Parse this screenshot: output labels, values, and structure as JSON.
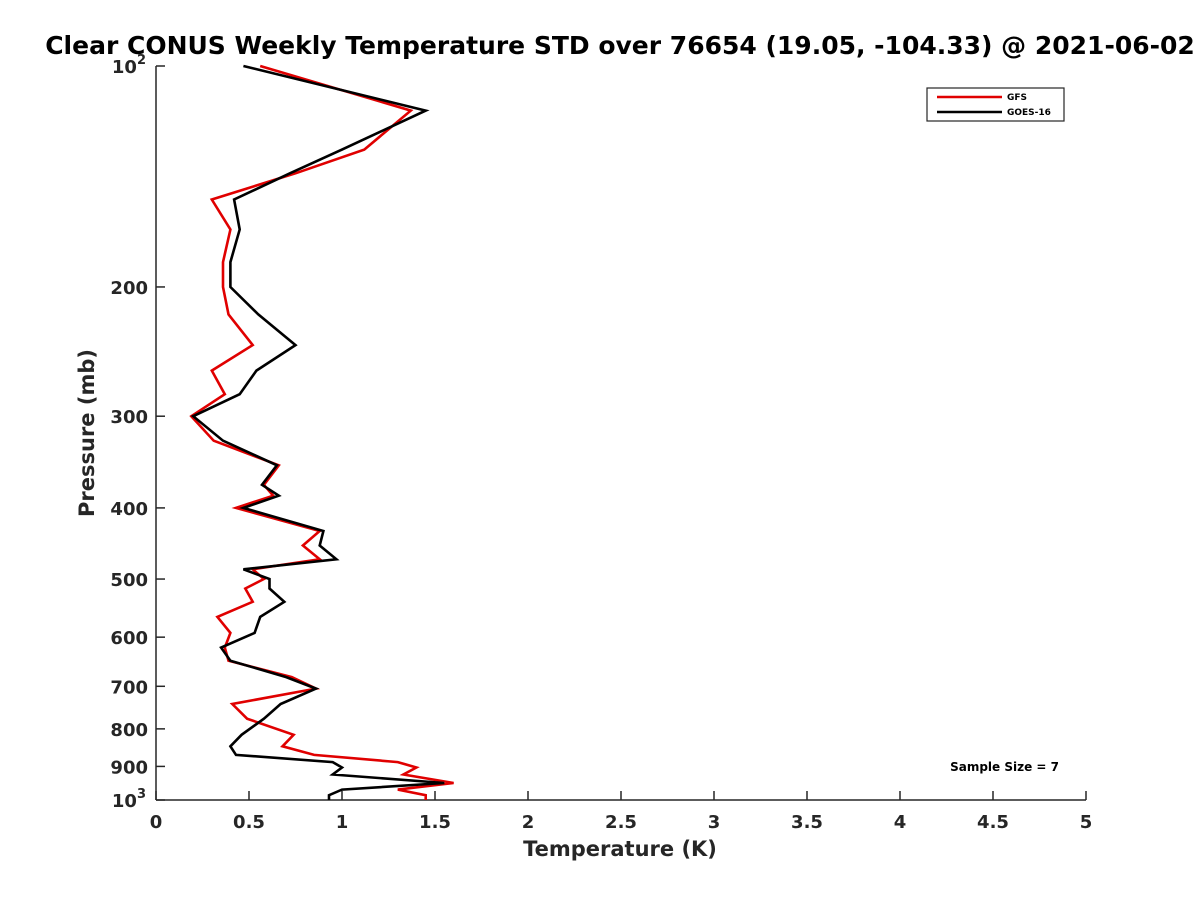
{
  "chart_data": {
    "type": "line",
    "title": "Clear CONUS Weekly Temperature STD over 76654 (19.05, -104.33) @ 2021-06-02",
    "xlabel": "Temperature (K)",
    "ylabel": "Pressure (mb)",
    "xlim": [
      0,
      5
    ],
    "ylim": [
      100,
      1000
    ],
    "y_scale": "log",
    "y_reversed": true,
    "x_ticks": [
      "0",
      "0.5",
      "1",
      "1.5",
      "2",
      "2.5",
      "3",
      "3.5",
      "4",
      "4.5",
      "5"
    ],
    "y_ticks": [
      {
        "value": 100,
        "base": "10",
        "exp": "2"
      },
      {
        "value": 200,
        "label": "200"
      },
      {
        "value": 300,
        "label": "300"
      },
      {
        "value": 400,
        "label": "400"
      },
      {
        "value": 500,
        "label": "500"
      },
      {
        "value": 600,
        "label": "600"
      },
      {
        "value": 700,
        "label": "700"
      },
      {
        "value": 800,
        "label": "800"
      },
      {
        "value": 900,
        "label": "900"
      },
      {
        "value": 1000,
        "base": "10",
        "exp": "3"
      }
    ],
    "grid": false,
    "legend_position": "top-right",
    "annotation": "Sample Size = 7",
    "series": [
      {
        "name": "GFS",
        "color": "#e00000",
        "points": [
          [
            0.56,
            100
          ],
          [
            1.37,
            115
          ],
          [
            1.12,
            130
          ],
          [
            0.75,
            140
          ],
          [
            0.3,
            152
          ],
          [
            0.4,
            167
          ],
          [
            0.36,
            185
          ],
          [
            0.36,
            200
          ],
          [
            0.39,
            218
          ],
          [
            0.52,
            240
          ],
          [
            0.3,
            260
          ],
          [
            0.37,
            280
          ],
          [
            0.19,
            300
          ],
          [
            0.31,
            324
          ],
          [
            0.66,
            350
          ],
          [
            0.58,
            372
          ],
          [
            0.63,
            385
          ],
          [
            0.43,
            400
          ],
          [
            0.88,
            430
          ],
          [
            0.79,
            450
          ],
          [
            0.88,
            470
          ],
          [
            0.52,
            485
          ],
          [
            0.58,
            500
          ],
          [
            0.48,
            515
          ],
          [
            0.52,
            537
          ],
          [
            0.33,
            563
          ],
          [
            0.4,
            592
          ],
          [
            0.37,
            620
          ],
          [
            0.39,
            646
          ],
          [
            0.73,
            680
          ],
          [
            0.86,
            705
          ],
          [
            0.41,
            740
          ],
          [
            0.49,
            775
          ],
          [
            0.74,
            815
          ],
          [
            0.68,
            845
          ],
          [
            0.85,
            868
          ],
          [
            1.3,
            888
          ],
          [
            1.4,
            903
          ],
          [
            1.33,
            923
          ],
          [
            1.6,
            948
          ],
          [
            1.3,
            968
          ],
          [
            1.45,
            985
          ],
          [
            1.45,
            1000
          ]
        ]
      },
      {
        "name": "GOES-16",
        "color": "#000000",
        "points": [
          [
            0.47,
            100
          ],
          [
            1.45,
            115
          ],
          [
            1.0,
            130
          ],
          [
            0.72,
            140
          ],
          [
            0.42,
            152
          ],
          [
            0.45,
            167
          ],
          [
            0.4,
            185
          ],
          [
            0.4,
            200
          ],
          [
            0.55,
            218
          ],
          [
            0.75,
            240
          ],
          [
            0.54,
            260
          ],
          [
            0.45,
            280
          ],
          [
            0.2,
            300
          ],
          [
            0.36,
            324
          ],
          [
            0.65,
            350
          ],
          [
            0.57,
            372
          ],
          [
            0.66,
            385
          ],
          [
            0.47,
            400
          ],
          [
            0.9,
            430
          ],
          [
            0.88,
            450
          ],
          [
            0.97,
            470
          ],
          [
            0.47,
            485
          ],
          [
            0.61,
            500
          ],
          [
            0.61,
            515
          ],
          [
            0.69,
            537
          ],
          [
            0.56,
            563
          ],
          [
            0.53,
            592
          ],
          [
            0.35,
            620
          ],
          [
            0.4,
            646
          ],
          [
            0.7,
            680
          ],
          [
            0.86,
            705
          ],
          [
            0.67,
            740
          ],
          [
            0.58,
            775
          ],
          [
            0.46,
            815
          ],
          [
            0.4,
            845
          ],
          [
            0.43,
            868
          ],
          [
            0.95,
            888
          ],
          [
            1.0,
            903
          ],
          [
            0.95,
            923
          ],
          [
            1.55,
            948
          ],
          [
            1.0,
            968
          ],
          [
            0.93,
            985
          ],
          [
            0.93,
            1000
          ]
        ]
      }
    ]
  }
}
